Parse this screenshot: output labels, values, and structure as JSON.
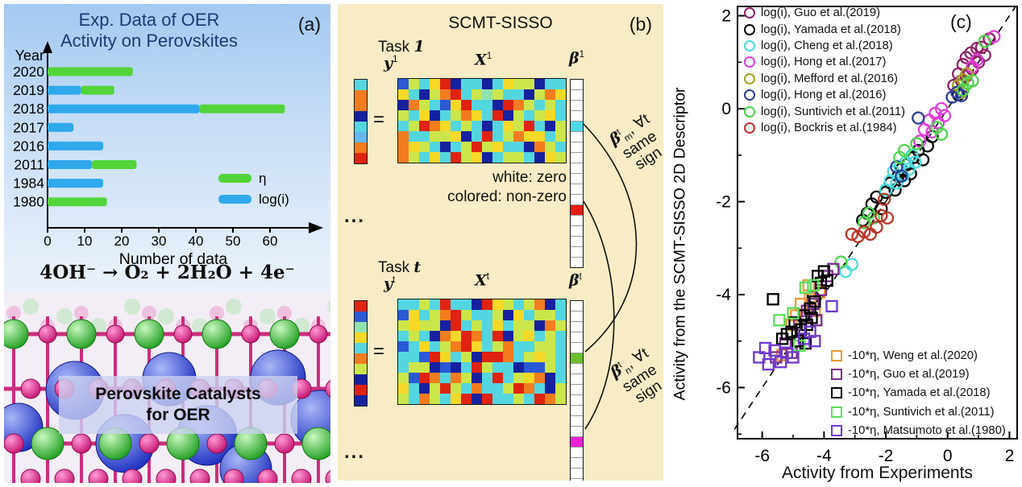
{
  "panel_a": {
    "label": "(a)",
    "title_line1": "Exp. Data of OER",
    "title_line2": "Activity on Perovskites",
    "equation": "4OH⁻ →  O₂ + 2H₂O + 4e⁻",
    "caption_line1": "Perovskite Catalysts",
    "caption_line2": "for OER"
  },
  "panel_b": {
    "label": "(b)",
    "title": "SCMT-SISSO",
    "task1": {
      "task_prefix": "Task",
      "task_suffix": "1",
      "y_label": "y",
      "y_sup": "1",
      "x_label": "X",
      "x_sup": "1",
      "beta_label": "β",
      "beta_sup": "1",
      "equals": "="
    },
    "taskt": {
      "task_prefix": "Task",
      "task_suffix": "t",
      "y_label": "y",
      "y_sup": "t",
      "x_label": "X",
      "x_sup": "t",
      "beta_label": "β",
      "beta_sup": "t",
      "equals": "="
    },
    "note_line1": "white: zero",
    "note_line2": "colored: non-zero",
    "ellipsis1": "...",
    "ellipsis2": "...",
    "annotation_m": {
      "beta": "β",
      "sup": "t",
      "sub": "m",
      "tail": ", ∀t",
      "line2": "same",
      "line3": "sign"
    },
    "annotation_n": {
      "beta": "β",
      "sup": "t",
      "sub": "n",
      "tail": ", ∀t",
      "line2": "same",
      "line3": "sign"
    },
    "palette": [
      "#df2310",
      "#f37c1e",
      "#f6d826",
      "#cbe64a",
      "#8fe3ae",
      "#53d6e0",
      "#64b8ef",
      "#2b59d6",
      "#16219f"
    ],
    "matrix1_rows": [
      "7352085585233855",
      "2583105343558312",
      "8135720558013535",
      "3528531250835325",
      "5301253585230583",
      "1553328505312253",
      "1235853032558135",
      "1352503285335823"
    ],
    "matrixt_rows": [
      "5535055802353185",
      "7253103553825335",
      "3233805352533813",
      "5358120150832535",
      "7525310253155335",
      "5570253800153235",
      "5338785035587735",
      "3701513850532185",
      "2583035155301583",
      "3513520805535013"
    ],
    "y1_cells": [
      5,
      1,
      1,
      8,
      5,
      6,
      1,
      0
    ],
    "yt_cells": [
      0,
      7,
      4,
      2,
      5,
      1,
      3,
      8,
      0,
      8
    ],
    "beta_special_colors": {
      "w": "#ffffff",
      "cyan": "#4fd9e8",
      "red": "#e51c12",
      "green": "#6abf2a",
      "magenta": "#ea1fd4"
    },
    "beta1_cells": [
      "w",
      "w",
      "w",
      "w",
      "cyan",
      "w",
      "w",
      "w",
      "w",
      "w",
      "w",
      "w",
      "red",
      "w",
      "w",
      "w",
      "w",
      "w"
    ],
    "betat_cells": [
      "w",
      "w",
      "w",
      "w",
      "w",
      "green",
      "w",
      "w",
      "w",
      "w",
      "w",
      "w",
      "w",
      "magenta",
      "w",
      "w",
      "w",
      "w"
    ]
  },
  "panel_c": {
    "label": "(c)",
    "ylabel": "Activity from the SCMT-SISSO 2D Descriptor",
    "xlabel": "Activity from Experiments"
  },
  "chart_data": [
    {
      "type": "bar",
      "title": "Exp. Data of OER Activity on Perovskites",
      "orientation": "horizontal",
      "categories": [
        "2020",
        "2019",
        "2018",
        "2017",
        "2016",
        "2011",
        "1984",
        "1980"
      ],
      "series": [
        {
          "name": "log(i)",
          "color": "#2fa9ec",
          "values": [
            0,
            9,
            41,
            7,
            15,
            12,
            15,
            0
          ]
        },
        {
          "name": "η",
          "color": "#53d53a",
          "values": [
            23,
            9,
            23,
            0,
            0,
            12,
            0,
            16
          ]
        }
      ],
      "stacked": true,
      "xlabel": "Number of data",
      "ylabel": "Year",
      "xticks": [
        0,
        10,
        20,
        30,
        40,
        50,
        60
      ],
      "xlim": [
        0,
        68
      ],
      "legend_position": "inside-right"
    },
    {
      "type": "scatter",
      "xlabel": "Activity from Experiments",
      "ylabel": "Activity from the SCMT-SISSO 2D Descriptor",
      "xlim": [
        -6.8,
        2.25
      ],
      "ylim": [
        -7.1,
        2.2
      ],
      "xticks": [
        -6,
        -4,
        -2,
        0,
        2
      ],
      "yticks": [
        2,
        0,
        -2,
        -4,
        -6
      ],
      "xticks_minor": [
        -5,
        -3,
        -1,
        1
      ],
      "yticks_minor": [
        1,
        -1,
        -3,
        -5,
        -7
      ],
      "diagonal_line": {
        "style": "dashed",
        "from": [
          -6.9,
          -6.9
        ],
        "to": [
          2.2,
          2.2
        ]
      },
      "grid": false,
      "series": [
        {
          "name": "log(i), Guo et al.(2019)",
          "marker": "circle",
          "color": "#8e2168",
          "points": [
            [
              0.2,
              0.5
            ],
            [
              0.35,
              0.75
            ],
            [
              0.5,
              0.95
            ],
            [
              0.6,
              1.1
            ],
            [
              0.75,
              1.2
            ],
            [
              0.95,
              1.3
            ],
            [
              1.1,
              1.32
            ],
            [
              1.2,
              1.15
            ],
            [
              1.0,
              1.0
            ],
            [
              0.8,
              0.85
            ],
            [
              0.6,
              0.7
            ],
            [
              0.45,
              0.6
            ],
            [
              1.35,
              1.5
            ]
          ]
        },
        {
          "name": "log(i), Yamada et al.(2018)",
          "marker": "circle",
          "color": "#000000",
          "points": [
            [
              -4.35,
              -4.05
            ],
            [
              -2.75,
              -2.4
            ],
            [
              -2.6,
              -2.25
            ],
            [
              -2.45,
              -2.05
            ],
            [
              -2.3,
              -1.9
            ],
            [
              -2.15,
              -2.15
            ],
            [
              -2.0,
              -1.8
            ],
            [
              -1.85,
              -1.6
            ],
            [
              -1.7,
              -1.75
            ],
            [
              -1.6,
              -1.45
            ],
            [
              -1.5,
              -1.3
            ],
            [
              -1.4,
              -1.55
            ],
            [
              -1.3,
              -1.2
            ],
            [
              -1.2,
              -1.4
            ],
            [
              -1.1,
              -1.05
            ],
            [
              -0.95,
              -0.9
            ],
            [
              -0.8,
              -1.1
            ],
            [
              -0.65,
              -0.8
            ],
            [
              -0.5,
              -0.6
            ],
            [
              0.35,
              0.3
            ]
          ]
        },
        {
          "name": "log(i), Cheng et al.(2018)",
          "marker": "circle",
          "color": "#49dede",
          "points": [
            [
              -3.3,
              -3.5
            ],
            [
              -3.1,
              -3.35
            ],
            [
              -2.0,
              -1.75
            ],
            [
              -1.85,
              -1.55
            ],
            [
              -1.75,
              -1.35
            ],
            [
              -1.65,
              -1.6
            ],
            [
              -1.55,
              -1.25
            ],
            [
              -1.45,
              -1.45
            ],
            [
              -1.35,
              -1.15
            ],
            [
              -1.25,
              -1.3
            ],
            [
              -1.15,
              -1.0
            ],
            [
              -1.05,
              -1.15
            ]
          ]
        },
        {
          "name": "log(i), Hong et al.(2017)",
          "marker": "circle",
          "color": "#e03fd8",
          "points": [
            [
              -0.9,
              -0.7
            ],
            [
              -0.75,
              -0.45
            ],
            [
              -0.6,
              -0.25
            ],
            [
              -0.5,
              -0.5
            ],
            [
              -0.4,
              -0.1
            ],
            [
              -0.3,
              -0.3
            ],
            [
              -0.2,
              0.0
            ],
            [
              -0.1,
              -0.15
            ],
            [
              0.8,
              0.9
            ],
            [
              0.95,
              1.05
            ],
            [
              1.5,
              1.55
            ]
          ]
        },
        {
          "name": "log(i), Mefford et al.(2016)",
          "marker": "circle",
          "color": "#a3a01f",
          "points": [
            [
              0.35,
              0.5
            ],
            [
              0.5,
              0.62
            ],
            [
              0.62,
              0.75
            ],
            [
              0.45,
              0.35
            ]
          ]
        },
        {
          "name": "log(i), Hong et al.(2016)",
          "marker": "circle",
          "color": "#2c3e96",
          "points": [
            [
              -1.65,
              -1.25
            ],
            [
              -1.5,
              -1.45
            ],
            [
              -0.95,
              -0.2
            ],
            [
              0.15,
              0.25
            ],
            [
              0.3,
              0.35
            ],
            [
              0.45,
              0.28
            ]
          ]
        },
        {
          "name": "log(i), Suntivich et al.(2011)",
          "marker": "circle",
          "color": "#4dd44d",
          "points": [
            [
              -3.45,
              -3.3
            ],
            [
              -2.7,
              -2.45
            ],
            [
              -2.55,
              -2.25
            ],
            [
              -2.4,
              -2.35
            ],
            [
              -1.55,
              -1.05
            ],
            [
              -1.4,
              -0.9
            ],
            [
              -1.0,
              -0.75
            ],
            [
              -0.35,
              -0.4
            ],
            [
              -0.2,
              -0.55
            ],
            [
              0.5,
              0.4
            ],
            [
              0.65,
              0.55
            ],
            [
              0.8,
              0.6
            ],
            [
              1.2,
              1.45
            ]
          ]
        },
        {
          "name": "log(i), Bockris et al.(1984)",
          "marker": "circle",
          "color": "#bb3528",
          "points": [
            [
              -3.1,
              -2.7
            ],
            [
              -2.9,
              -2.75
            ],
            [
              -2.7,
              -2.65
            ],
            [
              -2.5,
              -2.7
            ],
            [
              -2.3,
              -2.55
            ],
            [
              -2.15,
              -2.3
            ],
            [
              -1.95,
              -2.35
            ],
            [
              -2.05,
              -1.95
            ]
          ]
        },
        {
          "name": "-10*η, Weng et al.(2020)",
          "marker": "square",
          "color": "#e89a33",
          "points": [
            [
              -5.35,
              -5.3
            ],
            [
              -5.05,
              -4.65
            ],
            [
              -4.9,
              -4.45
            ],
            [
              -4.75,
              -4.2
            ],
            [
              -4.6,
              -4.5
            ],
            [
              -4.45,
              -4.1
            ],
            [
              -4.3,
              -4.35
            ],
            [
              -4.15,
              -3.95
            ],
            [
              -4.5,
              -3.8
            ]
          ]
        },
        {
          "name": "-10*η, Guo et al.(2019)",
          "marker": "square",
          "color": "#7c2d92",
          "points": [
            [
              -5.55,
              -5.35
            ],
            [
              -5.25,
              -5.05
            ],
            [
              -5.05,
              -5.25
            ],
            [
              -4.8,
              -4.65
            ],
            [
              -4.55,
              -4.35
            ],
            [
              -4.35,
              -4.2
            ],
            [
              -4.25,
              -4.55
            ],
            [
              -4.1,
              -3.9
            ],
            [
              -3.9,
              -3.6
            ],
            [
              -3.7,
              -3.45
            ]
          ]
        },
        {
          "name": "-10*η, Yamada et al.(2018)",
          "marker": "square",
          "color": "#000000",
          "points": [
            [
              -5.65,
              -4.1
            ],
            [
              -5.35,
              -4.95
            ],
            [
              -5.2,
              -4.85
            ],
            [
              -5.05,
              -4.8
            ],
            [
              -4.95,
              -4.6
            ],
            [
              -4.85,
              -5.0
            ],
            [
              -4.75,
              -4.75
            ],
            [
              -4.65,
              -4.45
            ],
            [
              -4.6,
              -5.05
            ],
            [
              -4.55,
              -4.65
            ],
            [
              -4.45,
              -4.3
            ],
            [
              -4.4,
              -4.5
            ],
            [
              -4.3,
              -4.15
            ],
            [
              -4.2,
              -3.6
            ],
            [
              -4.1,
              -3.75
            ],
            [
              -4.0,
              -3.5
            ],
            [
              -3.9,
              -3.7
            ]
          ]
        },
        {
          "name": "-10*η, Suntivich et al.(2011)",
          "marker": "square",
          "color": "#5ade5a",
          "points": [
            [
              -5.45,
              -4.55
            ],
            [
              -5.0,
              -4.4
            ],
            [
              -4.8,
              -5.1
            ],
            [
              -4.6,
              -3.85
            ],
            [
              -4.35,
              -3.8
            ]
          ]
        },
        {
          "name": "-10*η, Matsumoto et al.(1980)",
          "marker": "square",
          "color": "#6f39cf",
          "points": [
            [
              -6.1,
              -5.35
            ],
            [
              -5.9,
              -5.15
            ],
            [
              -5.8,
              -5.5
            ],
            [
              -5.6,
              -5.2
            ],
            [
              -5.4,
              -5.45
            ],
            [
              -5.2,
              -5.25
            ],
            [
              -5.0,
              -5.35
            ],
            [
              -4.65,
              -4.95
            ],
            [
              -4.45,
              -4.8
            ],
            [
              -4.3,
              -5.0
            ],
            [
              -3.75,
              -4.25
            ]
          ]
        }
      ]
    }
  ]
}
